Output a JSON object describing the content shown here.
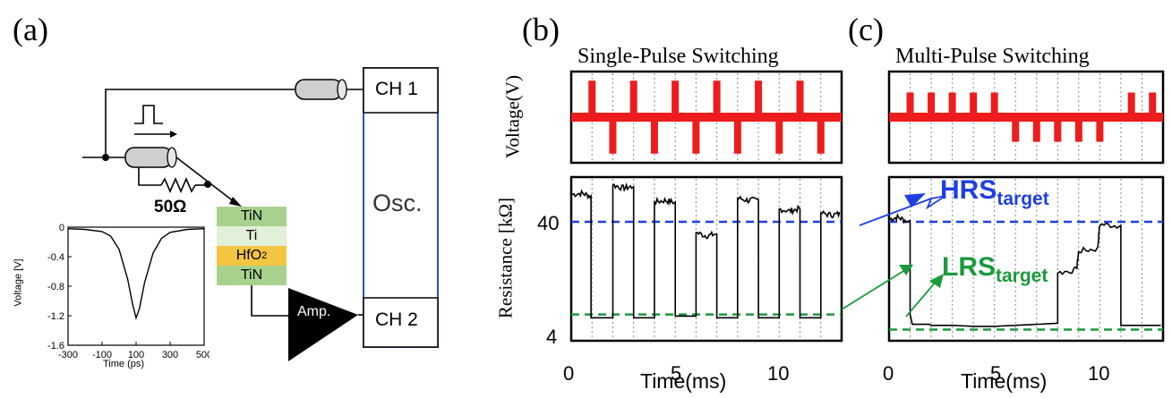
{
  "panels": {
    "a": {
      "letter": "(a)",
      "resistor_label": "50Ω",
      "stack": [
        {
          "name": "TiN",
          "color": "#a9d18e"
        },
        {
          "name": "Ti",
          "color": "#e2efd9"
        },
        {
          "name": "HfO2",
          "color": "#f4c542"
        },
        {
          "name": "TiN",
          "color": "#a9d18e"
        }
      ],
      "osc": {
        "label": "Osc.",
        "ch1": "CH 1",
        "ch2": "CH 2",
        "border_color": "#2e54a5"
      },
      "amp_label": "Amp.",
      "inset": {
        "ylabel": "Voltage [V]",
        "xlabel": "Time (ps)",
        "yticks": [
          "0",
          "-0.4",
          "-0.8",
          "-1.2",
          "-1.6"
        ],
        "xticks": [
          "-300",
          "-100",
          "100",
          "300",
          "500"
        ]
      }
    },
    "b": {
      "letter": "(b)",
      "title": "Single-Pulse Switching"
    },
    "c": {
      "letter": "(c)",
      "title": "Multi-Pulse Switching"
    },
    "shared": {
      "voltage_ylabel": "Voltage(V)",
      "resistance_ylabel": "Resistance [kΩ]",
      "ytick_high": "40",
      "ytick_low": "4",
      "xlabel": "Time(ms)",
      "xticks_b": [
        "0",
        "5",
        "10"
      ],
      "xticks_c": [
        "0",
        "5",
        "10"
      ]
    },
    "annotations": {
      "hrs_main": "HRS",
      "hrs_sub": "target",
      "lrs_main": "LRS",
      "lrs_sub": "target",
      "hrs_color": "#1f3fe0",
      "lrs_color": "#1a9a3c"
    }
  },
  "chart_data": [
    {
      "type": "line",
      "name": "inset-pulse",
      "xlabel": "Time (ps)",
      "ylabel": "Voltage [V]",
      "xlim": [
        -300,
        500
      ],
      "ylim": [
        -1.6,
        0
      ],
      "x": [
        -300,
        -200,
        -100,
        -50,
        0,
        50,
        80,
        100,
        120,
        150,
        200,
        250,
        300,
        400,
        500
      ],
      "y": [
        -0.02,
        -0.03,
        -0.06,
        -0.12,
        -0.3,
        -0.7,
        -1.05,
        -1.23,
        -1.1,
        -0.75,
        -0.35,
        -0.15,
        -0.07,
        -0.03,
        -0.02
      ]
    },
    {
      "type": "line",
      "name": "single-pulse-voltage",
      "ylabel": "Voltage(V)",
      "xlim": [
        0,
        13
      ],
      "pulses": [
        {
          "t": 1.0,
          "polarity": 1
        },
        {
          "t": 2.0,
          "polarity": -1
        },
        {
          "t": 3.0,
          "polarity": 1
        },
        {
          "t": 4.0,
          "polarity": -1
        },
        {
          "t": 5.0,
          "polarity": 1
        },
        {
          "t": 6.0,
          "polarity": -1
        },
        {
          "t": 7.0,
          "polarity": 1
        },
        {
          "t": 8.0,
          "polarity": -1
        },
        {
          "t": 9.0,
          "polarity": 1
        },
        {
          "t": 10.0,
          "polarity": -1
        },
        {
          "t": 11.0,
          "polarity": 1
        },
        {
          "t": 12.0,
          "polarity": -1
        }
      ]
    },
    {
      "type": "line",
      "name": "single-pulse-resistance",
      "xlabel": "Time(ms)",
      "ylabel": "Resistance [kΩ]",
      "xlim": [
        0,
        13
      ],
      "log_y": true,
      "ylim": [
        3.5,
        100
      ],
      "reference_lines": [
        {
          "y": 40,
          "color": "#1f3fe0"
        },
        {
          "y": 6,
          "color": "#1a9a3c"
        }
      ],
      "x": [
        0,
        0.5,
        0.9,
        0.95,
        1.0,
        1.9,
        2.0,
        2.5,
        2.9,
        3.0,
        3.9,
        4.0,
        4.5,
        4.9,
        5.0,
        5.9,
        6.0,
        6.5,
        6.9,
        7.0,
        7.9,
        8.0,
        8.5,
        8.9,
        9.0,
        9.9,
        10.0,
        10.5,
        10.9,
        11.0,
        11.9,
        12.0,
        12.5,
        12.9
      ],
      "y": [
        70,
        72,
        68,
        5.6,
        5.6,
        5.6,
        85,
        80,
        82,
        5.6,
        5.6,
        60,
        62,
        60,
        5.8,
        5.8,
        32,
        30,
        31,
        5.6,
        5.6,
        65,
        62,
        63,
        5.6,
        5.6,
        52,
        50,
        52,
        5.6,
        5.6,
        48,
        46,
        47
      ]
    },
    {
      "type": "line",
      "name": "multi-pulse-voltage",
      "ylabel": "Voltage(V)",
      "xlim": [
        0,
        13
      ],
      "pulses": [
        {
          "t": 1.0,
          "polarity": 1
        },
        {
          "t": 2.0,
          "polarity": 1
        },
        {
          "t": 3.0,
          "polarity": 1
        },
        {
          "t": 4.0,
          "polarity": 1
        },
        {
          "t": 5.0,
          "polarity": 1
        },
        {
          "t": 6.0,
          "polarity": -1
        },
        {
          "t": 7.0,
          "polarity": -1
        },
        {
          "t": 8.0,
          "polarity": -1
        },
        {
          "t": 9.0,
          "polarity": -1
        },
        {
          "t": 10.0,
          "polarity": -1
        },
        {
          "t": 11.5,
          "polarity": 1
        },
        {
          "t": 12.5,
          "polarity": 1
        }
      ]
    },
    {
      "type": "line",
      "name": "multi-pulse-resistance",
      "xlabel": "Time(ms)",
      "ylabel": "Resistance [kΩ]",
      "xlim": [
        0,
        13
      ],
      "log_y": true,
      "ylim": [
        3.5,
        100
      ],
      "reference_lines": [
        {
          "y": 40,
          "color": "#1f3fe0"
        },
        {
          "y": 4.4,
          "color": "#1a9a3c"
        }
      ],
      "x": [
        0,
        0.4,
        0.8,
        1.0,
        1.1,
        1.9,
        2.0,
        3.0,
        4.0,
        5.0,
        6.0,
        7.0,
        7.9,
        8.0,
        8.9,
        9.0,
        9.9,
        10.0,
        10.8,
        11.0,
        12.0,
        12.9
      ],
      "y": [
        42,
        44,
        41,
        6,
        4.9,
        4.9,
        4.8,
        4.8,
        4.7,
        4.7,
        4.8,
        4.9,
        5.0,
        14,
        15,
        22,
        23,
        38,
        37,
        4.8,
        4.8,
        4.8
      ]
    }
  ]
}
